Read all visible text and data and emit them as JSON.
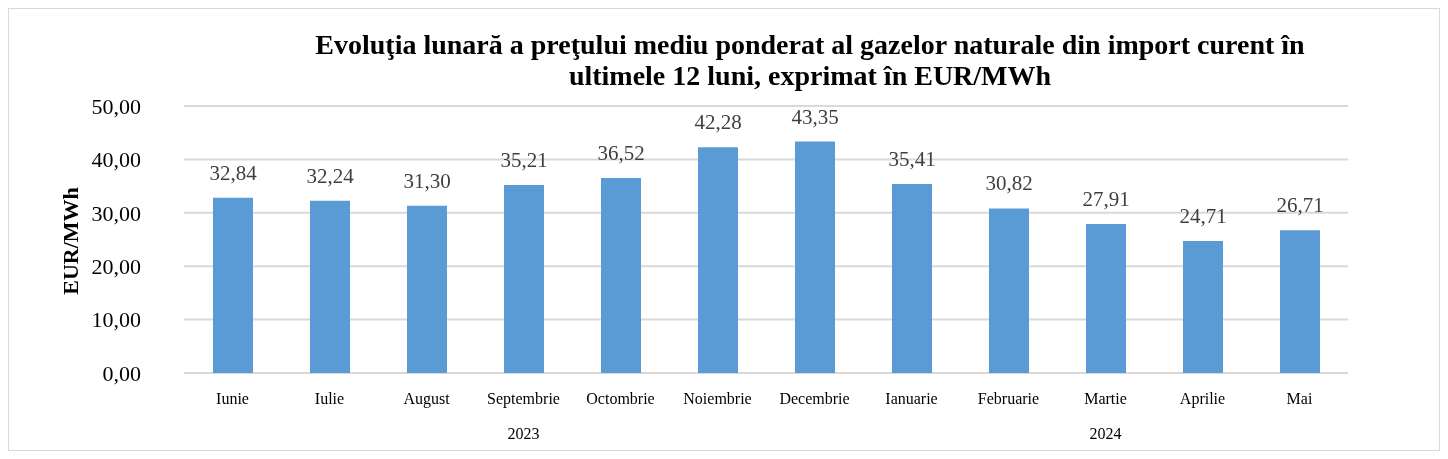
{
  "chart_data": {
    "type": "bar",
    "title": "Evoluţia lunară a preţului mediu ponderat al gazelor naturale din import curent în ultimele 12 luni, exprimat în EUR/MWh",
    "ylabel": "EUR/MWh",
    "categories": [
      "Iunie",
      "Iulie",
      "August",
      "Septembrie",
      "Octombrie",
      "Noiembrie",
      "Decembrie",
      "Ianuarie",
      "Februarie",
      "Martie",
      "Aprilie",
      "Mai"
    ],
    "values": [
      32.84,
      32.24,
      31.3,
      35.21,
      36.52,
      42.28,
      43.35,
      35.41,
      30.82,
      27.91,
      24.71,
      26.71
    ],
    "value_labels": [
      "32,84",
      "32,24",
      "31,30",
      "35,21",
      "36,52",
      "42,28",
      "43,35",
      "35,41",
      "30,82",
      "27,91",
      "24,71",
      "26,71"
    ],
    "color": "#5b9bd5",
    "ylim": [
      0,
      50
    ],
    "yticks": [
      {
        "value": 0,
        "label": "0,00"
      },
      {
        "value": 10,
        "label": "10,00"
      },
      {
        "value": 20,
        "label": "20,00"
      },
      {
        "value": 30,
        "label": "30,00"
      },
      {
        "value": 40,
        "label": "40,00"
      },
      {
        "value": 50,
        "label": "50,00"
      }
    ],
    "grid": "y",
    "annotations": [
      "2023",
      "2024"
    ]
  }
}
